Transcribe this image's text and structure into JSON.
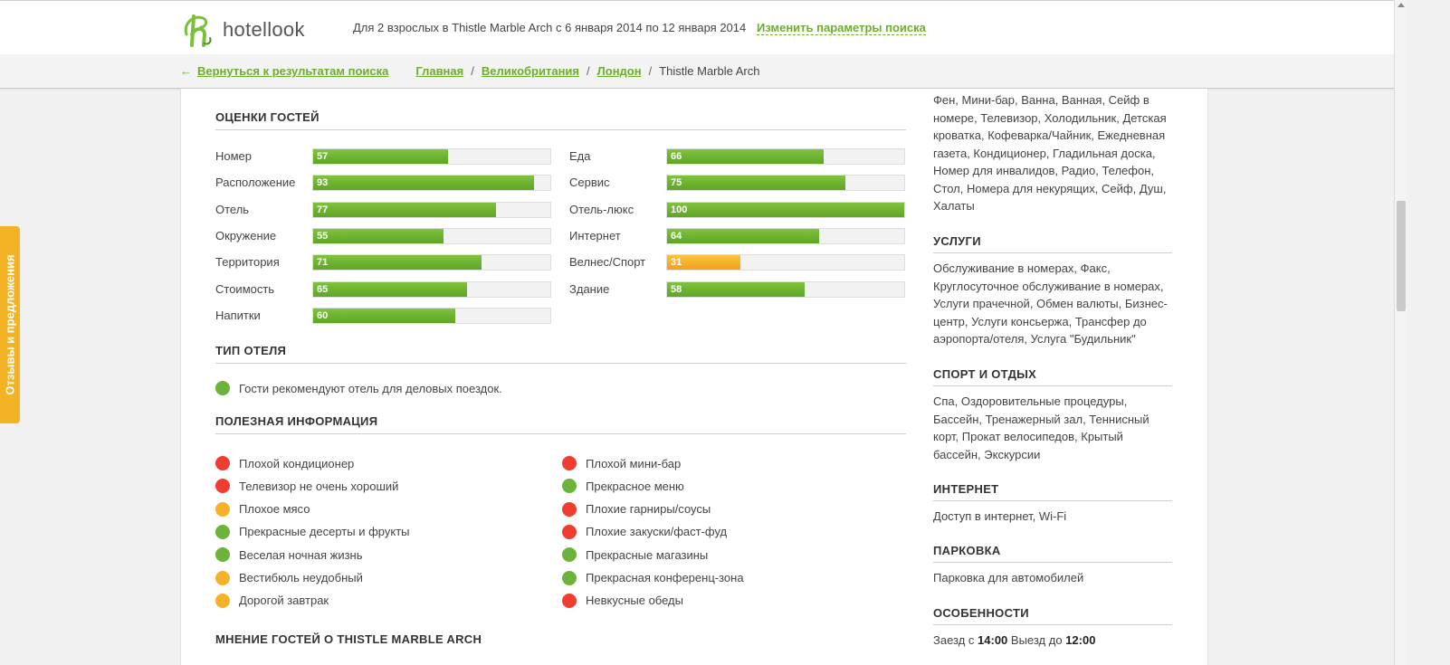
{
  "header": {
    "logo_text": "hotellook",
    "search_summary": "Для 2 взрослых в Thistle Marble Arch с 6 января 2014 по 12 января 2014",
    "change_link": "Изменить параметры поиска"
  },
  "breadcrumb": {
    "back_arrow": "←",
    "back_label": "Вернуться к результатам поиска",
    "items": [
      "Главная",
      "Великобритания",
      "Лондон"
    ],
    "separator": "/",
    "current": "Thistle Marble Arch"
  },
  "feedback_tab": "Отзывы и предложения",
  "ratings": {
    "title": "ОЦЕНКИ ГОСТЕЙ",
    "left": [
      {
        "label": "Номер",
        "value": 57,
        "color": "green"
      },
      {
        "label": "Расположение",
        "value": 93,
        "color": "green"
      },
      {
        "label": "Отель",
        "value": 77,
        "color": "green"
      },
      {
        "label": "Окружение",
        "value": 55,
        "color": "green"
      },
      {
        "label": "Территория",
        "value": 71,
        "color": "green"
      },
      {
        "label": "Стоимость",
        "value": 65,
        "color": "green"
      },
      {
        "label": "Напитки",
        "value": 60,
        "color": "green"
      }
    ],
    "right": [
      {
        "label": "Еда",
        "value": 66,
        "color": "green"
      },
      {
        "label": "Сервис",
        "value": 75,
        "color": "green"
      },
      {
        "label": "Отель-люкс",
        "value": 100,
        "color": "green"
      },
      {
        "label": "Интернет",
        "value": 64,
        "color": "green"
      },
      {
        "label": "Велнес/Спорт",
        "value": 31,
        "color": "orange"
      },
      {
        "label": "Здание",
        "value": 58,
        "color": "green"
      }
    ],
    "max": 100
  },
  "hotel_type": {
    "title": "ТИП ОТЕЛЯ",
    "items": [
      {
        "text": "Гости рекомендуют отель для деловых поездок.",
        "status": "green"
      }
    ]
  },
  "useful_info": {
    "title": "ПОЛЕЗНАЯ ИНФОРМАЦИЯ",
    "left": [
      {
        "text": "Плохой кондиционер",
        "status": "red"
      },
      {
        "text": "Телевизор не очень хороший",
        "status": "red"
      },
      {
        "text": "Плохое мясо",
        "status": "orange"
      },
      {
        "text": "Прекрасные десерты и фрукты",
        "status": "green"
      },
      {
        "text": "Веселая ночная жизнь",
        "status": "green"
      },
      {
        "text": "Вестибюль неудобный",
        "status": "orange"
      },
      {
        "text": "Дорогой завтрак",
        "status": "orange"
      }
    ],
    "right": [
      {
        "text": "Плохой мини-бар",
        "status": "red"
      },
      {
        "text": "Прекрасное меню",
        "status": "green"
      },
      {
        "text": "Плохие гарниры/соусы",
        "status": "red"
      },
      {
        "text": "Плохие закуски/фаст-фуд",
        "status": "red"
      },
      {
        "text": "Прекрасные магазины",
        "status": "green"
      },
      {
        "text": "Прекрасная конференц-зона",
        "status": "green"
      },
      {
        "text": "Невкусные обеды",
        "status": "red"
      }
    ]
  },
  "guest_opinion": {
    "title": "МНЕНИЕ ГОСТЕЙ О THISTLE MARBLE ARCH"
  },
  "amenities": {
    "room_text": "Фен, Мини-бар, Ванна, Ванная, Сейф в номере, Телевизор, Холодильник, Детская кроватка, Кофеварка/Чайник, Ежедневная газета, Кондиционер, Гладильная доска, Номер для инвалидов, Радио, Телефон, Стол, Номера для некурящих, Сейф, Душ, Халаты",
    "services_title": "УСЛУГИ",
    "services_text": "Обслуживание в номерах, Факс, Круглосуточное обслуживание в номерах, Услуги прачечной, Обмен валюты, Бизнес-центр, Услуги консьержа, Трансфер до аэропорта/отеля, Услуга \"Будильник\"",
    "sport_title": "СПОРТ И ОТДЫХ",
    "sport_text": "Спа, Оздоровительные процедуры, Бассейн, Тренажерный зал, Теннисный корт, Прокат велосипедов, Крытый бассейн, Экскурсии",
    "internet_title": "ИНТЕРНЕТ",
    "internet_text": "Доступ в интернет, Wi-Fi",
    "parking_title": "ПАРКОВКА",
    "parking_text": "Парковка для автомобилей",
    "features_title": "ОСОБЕННОСТИ",
    "checkin_label": "Заезд с",
    "checkin_time": "14:00",
    "checkout_label": "Выезд до",
    "checkout_time": "12:00"
  },
  "colors": {
    "accent": "#6cae2c",
    "bar_green": "#6cb33a",
    "bar_orange": "#f6b12a",
    "status_red": "#ef3e2f"
  }
}
